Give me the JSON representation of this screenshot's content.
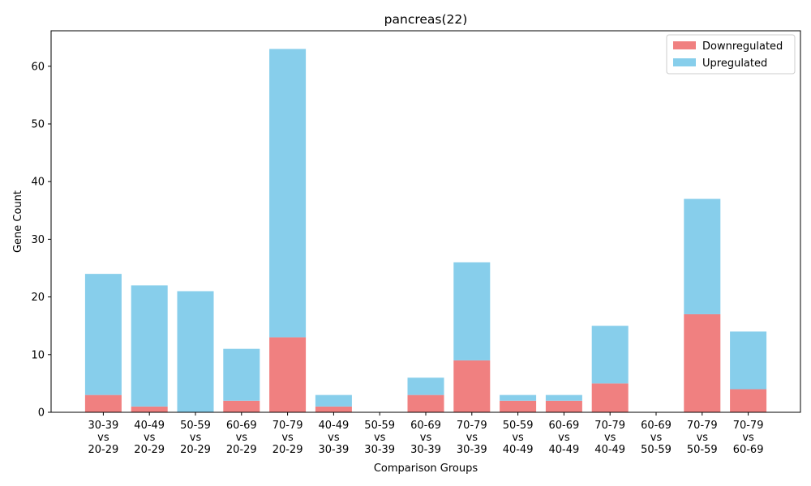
{
  "chart_data": {
    "type": "bar",
    "stacked": true,
    "title": "pancreas(22)",
    "xlabel": "Comparison Groups",
    "ylabel": "Gene Count",
    "ylim": [
      0,
      66.15
    ],
    "yticks": [
      0,
      10,
      20,
      30,
      40,
      50,
      60
    ],
    "grid": false,
    "legend_position": "top-right",
    "categories": [
      [
        "30-39",
        "vs",
        "20-29"
      ],
      [
        "40-49",
        "vs",
        "20-29"
      ],
      [
        "50-59",
        "vs",
        "20-29"
      ],
      [
        "60-69",
        "vs",
        "20-29"
      ],
      [
        "70-79",
        "vs",
        "20-29"
      ],
      [
        "40-49",
        "vs",
        "30-39"
      ],
      [
        "50-59",
        "vs",
        "30-39"
      ],
      [
        "60-69",
        "vs",
        "30-39"
      ],
      [
        "70-79",
        "vs",
        "30-39"
      ],
      [
        "50-59",
        "vs",
        "40-49"
      ],
      [
        "60-69",
        "vs",
        "40-49"
      ],
      [
        "70-79",
        "vs",
        "40-49"
      ],
      [
        "60-69",
        "vs",
        "50-59"
      ],
      [
        "70-79",
        "vs",
        "50-59"
      ],
      [
        "70-79",
        "vs",
        "60-69"
      ]
    ],
    "series": [
      {
        "name": "Downregulated",
        "color": "#f08080",
        "values": [
          3,
          1,
          0,
          2,
          13,
          1,
          0,
          3,
          9,
          2,
          2,
          5,
          0,
          17,
          4
        ]
      },
      {
        "name": "Upregulated",
        "color": "#87ceeb",
        "values": [
          21,
          21,
          21,
          9,
          50,
          2,
          0,
          3,
          17,
          1,
          1,
          10,
          0,
          20,
          10
        ]
      }
    ]
  }
}
